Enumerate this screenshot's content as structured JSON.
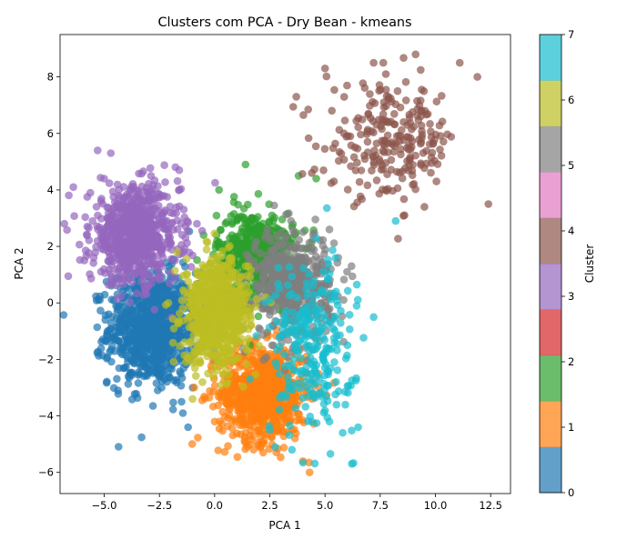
{
  "chart_data": {
    "type": "scatter",
    "title": "Clusters com PCA - Dry Bean - kmeans",
    "xlabel": "PCA 1",
    "ylabel": "PCA 2",
    "xlim": [
      -7.0,
      13.4
    ],
    "ylim": [
      -6.75,
      9.5
    ],
    "x_ticks": [
      -5.0,
      -2.5,
      0.0,
      2.5,
      5.0,
      7.5,
      10.0,
      12.5
    ],
    "x_tick_labels": [
      "−5.0",
      "−2.5",
      "0.0",
      "2.5",
      "5.0",
      "7.5",
      "10.0",
      "12.5"
    ],
    "y_ticks": [
      -6,
      -4,
      -2,
      0,
      2,
      4,
      6,
      8
    ],
    "y_tick_labels": [
      "−6",
      "−4",
      "−2",
      "0",
      "2",
      "4",
      "6",
      "8"
    ],
    "grid": false,
    "marker_alpha": 0.7,
    "colorbar": {
      "label": "Cluster",
      "range": [
        0,
        7
      ],
      "ticks": [
        0,
        1,
        2,
        3,
        4,
        5,
        6,
        7
      ],
      "tick_labels": [
        "0",
        "1",
        "2",
        "3",
        "4",
        "5",
        "6",
        "7"
      ],
      "colors": [
        "#1f77b4",
        "#ff7f0e",
        "#2ca02c",
        "#d62728",
        "#9467bd",
        "#8c564b",
        "#e377c2",
        "#7f7f7f",
        "#bcbd22",
        "#17becf"
      ]
    },
    "series": [
      {
        "cluster": 0,
        "color": "#1f77b4",
        "center": [
          -2.8,
          -0.9
        ],
        "spread": [
          1.0,
          1.0
        ],
        "count": 900,
        "sample_points": [
          [
            -5.2,
            0.1
          ],
          [
            -4.5,
            -1.3
          ],
          [
            -3.9,
            -2.6
          ],
          [
            -3.2,
            -2.2
          ],
          [
            -2.4,
            -3.0
          ],
          [
            -1.5,
            -3.5
          ],
          [
            -1.2,
            -4.4
          ],
          [
            -1.7,
            0.6
          ],
          [
            -4.8,
            -0.4
          ],
          [
            -2.0,
            0.9
          ]
        ]
      },
      {
        "cluster": 1,
        "color": "#ff7f0e",
        "center": [
          2.2,
          -3.2
        ],
        "spread": [
          1.0,
          0.85
        ],
        "count": 750,
        "sample_points": [
          [
            0.0,
            -4.2
          ],
          [
            1.0,
            -2.1
          ],
          [
            2.2,
            -5.3
          ],
          [
            3.5,
            -4.5
          ],
          [
            4.0,
            -5.6
          ],
          [
            4.3,
            -6.0
          ],
          [
            4.7,
            -2.5
          ],
          [
            2.8,
            -1.9
          ],
          [
            1.4,
            -4.6
          ],
          [
            0.6,
            -3.3
          ]
        ]
      },
      {
        "cluster": 2,
        "color": "#2ca02c",
        "center": [
          1.9,
          1.7
        ],
        "spread": [
          0.9,
          0.75
        ],
        "count": 560,
        "sample_points": [
          [
            1.4,
            4.9
          ],
          [
            0.2,
            4.0
          ],
          [
            -0.5,
            2.4
          ],
          [
            3.5,
            2.7
          ],
          [
            3.8,
            4.5
          ],
          [
            4.6,
            4.4
          ],
          [
            1.6,
            -1.5
          ],
          [
            2.6,
            3.1
          ],
          [
            0.5,
            0.4
          ],
          [
            3.0,
            0.6
          ]
        ]
      },
      {
        "cluster": 4,
        "color": "#9467bd",
        "center": [
          -3.6,
          2.4
        ],
        "spread": [
          1.0,
          0.85
        ],
        "count": 750,
        "sample_points": [
          [
            -6.4,
            4.1
          ],
          [
            -5.3,
            5.4
          ],
          [
            -4.7,
            5.3
          ],
          [
            -3.4,
            3.4
          ],
          [
            -5.0,
            4.4
          ],
          [
            -5.9,
            1.5
          ],
          [
            -1.6,
            4.7
          ],
          [
            -1.6,
            4.0
          ],
          [
            -4.4,
            0.9
          ],
          [
            -0.8,
            2.8
          ]
        ]
      },
      {
        "cluster": 5,
        "color": "#8c564b",
        "center": [
          8.0,
          5.7
        ],
        "spread": [
          1.5,
          1.0
        ],
        "count": 240,
        "sample_points": [
          [
            3.7,
            7.3
          ],
          [
            5.0,
            8.3
          ],
          [
            7.2,
            8.5
          ],
          [
            9.1,
            8.8
          ],
          [
            11.1,
            8.5
          ],
          [
            12.4,
            3.5
          ],
          [
            11.9,
            8.0
          ],
          [
            9.5,
            3.4
          ],
          [
            5.4,
            4.3
          ],
          [
            4.4,
            4.6
          ]
        ]
      },
      {
        "cluster": 7,
        "color": "#7f7f7f",
        "center": [
          3.5,
          0.6
        ],
        "spread": [
          0.9,
          0.95
        ],
        "count": 520,
        "sample_points": [
          [
            4.0,
            2.5
          ],
          [
            5.2,
            2.6
          ],
          [
            6.0,
            1.1
          ],
          [
            6.2,
            1.3
          ],
          [
            5.6,
            1.6
          ],
          [
            2.6,
            -1.5
          ],
          [
            2.4,
            2.6
          ],
          [
            4.8,
            0.6
          ],
          [
            3.1,
            -0.4
          ],
          [
            1.9,
            0.2
          ]
        ]
      },
      {
        "cluster": 8,
        "color": "#bcbd22",
        "center": [
          0.1,
          -0.3
        ],
        "spread": [
          0.75,
          0.9
        ],
        "count": 700,
        "sample_points": [
          [
            -1.7,
            1.8
          ],
          [
            -1.0,
            -3.4
          ],
          [
            0.3,
            -2.9
          ],
          [
            1.4,
            1.3
          ],
          [
            -0.5,
            -0.4
          ],
          [
            0.8,
            0.9
          ],
          [
            1.5,
            -0.3
          ],
          [
            -1.3,
            -2.1
          ],
          [
            0.1,
            1.5
          ],
          [
            -0.3,
            -2.5
          ]
        ]
      },
      {
        "cluster": 9,
        "color": "#17becf",
        "center": [
          4.4,
          -1.6
        ],
        "spread": [
          0.95,
          1.5
        ],
        "count": 260,
        "sample_points": [
          [
            5.5,
            0.4
          ],
          [
            5.5,
            -2.8
          ],
          [
            5.8,
            -4.6
          ],
          [
            6.5,
            -4.4
          ],
          [
            8.2,
            2.9
          ],
          [
            7.2,
            -0.5
          ],
          [
            5.2,
            -4.2
          ],
          [
            3.5,
            -5.2
          ],
          [
            4.3,
            -1.7
          ],
          [
            2.5,
            -4.5
          ]
        ]
      }
    ]
  }
}
